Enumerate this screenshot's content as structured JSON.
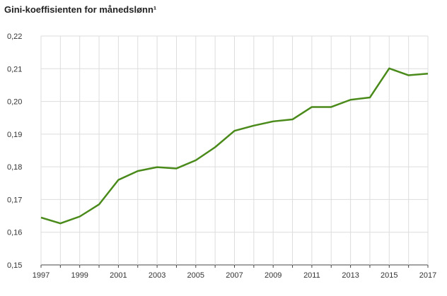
{
  "chart_data": {
    "type": "line",
    "title": "Gini-koeffisienten for månedslønn¹",
    "xlabel": "",
    "ylabel": "",
    "ylim": [
      0.15,
      0.22
    ],
    "xlim": [
      1997,
      2017
    ],
    "y_ticks": [
      "0,15",
      "0,16",
      "0,17",
      "0,18",
      "0,19",
      "0,20",
      "0,21",
      "0,22"
    ],
    "x_ticks": [
      "1997",
      "1999",
      "2001",
      "2003",
      "2005",
      "2007",
      "2009",
      "2011",
      "2013",
      "2015",
      "2017"
    ],
    "grid": true,
    "line_color": "#4a8a1a",
    "series": [
      {
        "x": [
          1997,
          1998,
          1999,
          2000,
          2001,
          2002,
          2003,
          2004,
          2005,
          2006,
          2007,
          2008,
          2009,
          2010,
          2011,
          2012,
          2013,
          2014,
          2015,
          2016,
          2017
        ],
        "values": [
          0.1645,
          0.1627,
          0.1648,
          0.1685,
          0.176,
          0.1787,
          0.1799,
          0.1795,
          0.182,
          0.186,
          0.191,
          0.1926,
          0.1939,
          0.1945,
          0.1983,
          0.1983,
          0.2005,
          0.2012,
          0.2101,
          0.208,
          0.2085
        ]
      }
    ]
  }
}
